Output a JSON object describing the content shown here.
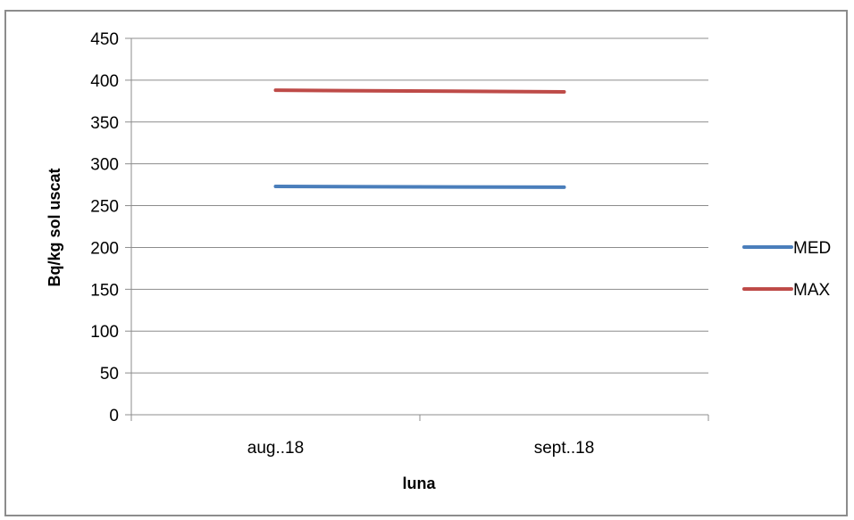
{
  "chart_data": {
    "type": "line",
    "categories": [
      "aug..18",
      "sept..18"
    ],
    "series": [
      {
        "name": "MED",
        "values": [
          273,
          272
        ],
        "color": "#4a7ebb"
      },
      {
        "name": "MAX",
        "values": [
          388,
          386
        ],
        "color": "#be4b48"
      }
    ],
    "xlabel": "luna",
    "ylabel": "Bq/kg sol uscat",
    "ylim": [
      0,
      450
    ],
    "yticks": [
      0,
      50,
      100,
      150,
      200,
      250,
      300,
      350,
      400,
      450
    ],
    "grid": true,
    "legend": "right"
  }
}
